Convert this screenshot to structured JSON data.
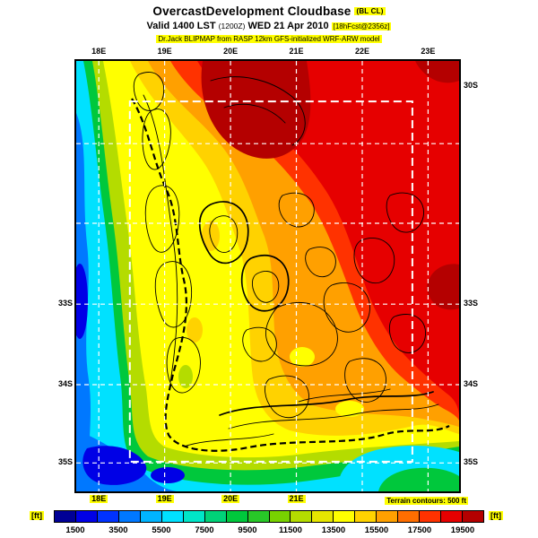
{
  "header": {
    "title": "OvercastDevelopment Cloudbase",
    "title_tag": "(BL CL)",
    "valid_line": {
      "prefix": "Valid 1400 LST",
      "zulu": "(1200Z)",
      "date": "WED 21 Apr 2010",
      "fcst_tag": "[18hFcst@2356z]"
    },
    "model_line": "Dr.Jack BLIPMAP from RASP 12km GFS-initialized WRF-ARW model"
  },
  "map": {
    "note": "Terrain contours: 500 ft",
    "axis": {
      "top": [
        {
          "label": "18E",
          "fx": 0.059
        },
        {
          "label": "19E",
          "fx": 0.231
        },
        {
          "label": "20E",
          "fx": 0.403
        },
        {
          "label": "21E",
          "fx": 0.575
        },
        {
          "label": "22E",
          "fx": 0.747
        },
        {
          "label": "23E",
          "fx": 0.919
        }
      ],
      "bottom": [
        {
          "label": "18E",
          "fx": 0.059
        },
        {
          "label": "19E",
          "fx": 0.231
        },
        {
          "label": "20E",
          "fx": 0.403
        },
        {
          "label": "21E",
          "fx": 0.575
        }
      ],
      "left": [
        {
          "label": "33S",
          "fy": 0.565
        },
        {
          "label": "34S",
          "fy": 0.752
        },
        {
          "label": "35S",
          "fy": 0.934
        }
      ],
      "right": [
        {
          "label": "30S",
          "fy": 0.058
        },
        {
          "label": "33S",
          "fy": 0.565
        },
        {
          "label": "34S",
          "fy": 0.752
        },
        {
          "label": "35S",
          "fy": 0.934
        }
      ]
    },
    "grid": {
      "v_fx": [
        0.059,
        0.231,
        0.403,
        0.575,
        0.747,
        0.919
      ],
      "h_fy": [
        0.192,
        0.377,
        0.565,
        0.752,
        0.934
      ],
      "domain_box": {
        "x0": 0.14,
        "y0": 0.094,
        "x1": 0.878,
        "y1": 0.931
      }
    }
  },
  "colorbar": {
    "unit_label": "[ft]",
    "ticks": [
      "1500",
      "3500",
      "5500",
      "7500",
      "9500",
      "11500",
      "13500",
      "15500",
      "17500",
      "19500"
    ],
    "colors": [
      "#000096",
      "#0000e6",
      "#0032ff",
      "#0078ff",
      "#00b4ff",
      "#00e1ff",
      "#00e6c8",
      "#00d278",
      "#00c83c",
      "#28c828",
      "#78d200",
      "#b4dc00",
      "#e6e600",
      "#ffff00",
      "#ffd200",
      "#ffa000",
      "#ff6e00",
      "#ff3200",
      "#e60000",
      "#b40000"
    ]
  },
  "style": {
    "highlight": "#ffff00",
    "contour": "#000000",
    "grid": "#ffffff"
  },
  "chart_data": {
    "type": "heatmap",
    "title": "OvercastDevelopment Cloudbase (BL CL)",
    "valid": "Valid 1400 LST (1200Z) WED 21 Apr 2010",
    "forecast_tag": "18hFcst@2356z",
    "model": "Dr.Jack BLIPMAP from RASP 12km GFS-initialized WRF-ARW model",
    "unit": "ft",
    "colorbar_ticks": [
      1500,
      3500,
      5500,
      7500,
      9500,
      11500,
      13500,
      15500,
      17500,
      19500
    ],
    "x_tick_labels": [
      "18E",
      "19E",
      "20E",
      "21E",
      "22E",
      "23E"
    ],
    "y_tick_labels": [
      "30S",
      "33S",
      "34S",
      "35S"
    ],
    "terrain_contour_interval_ft": 500,
    "pattern": "Low cloudbase (1500-7500 ft; blue/cyan/green) over ocean along west and south coasts; moderate (9500-13500 ft; yellow band) along the coastal strip; high cloudbase (15500-19500+ ft; orange/red, darkest red top-center and east edge) over inland northeast"
  }
}
